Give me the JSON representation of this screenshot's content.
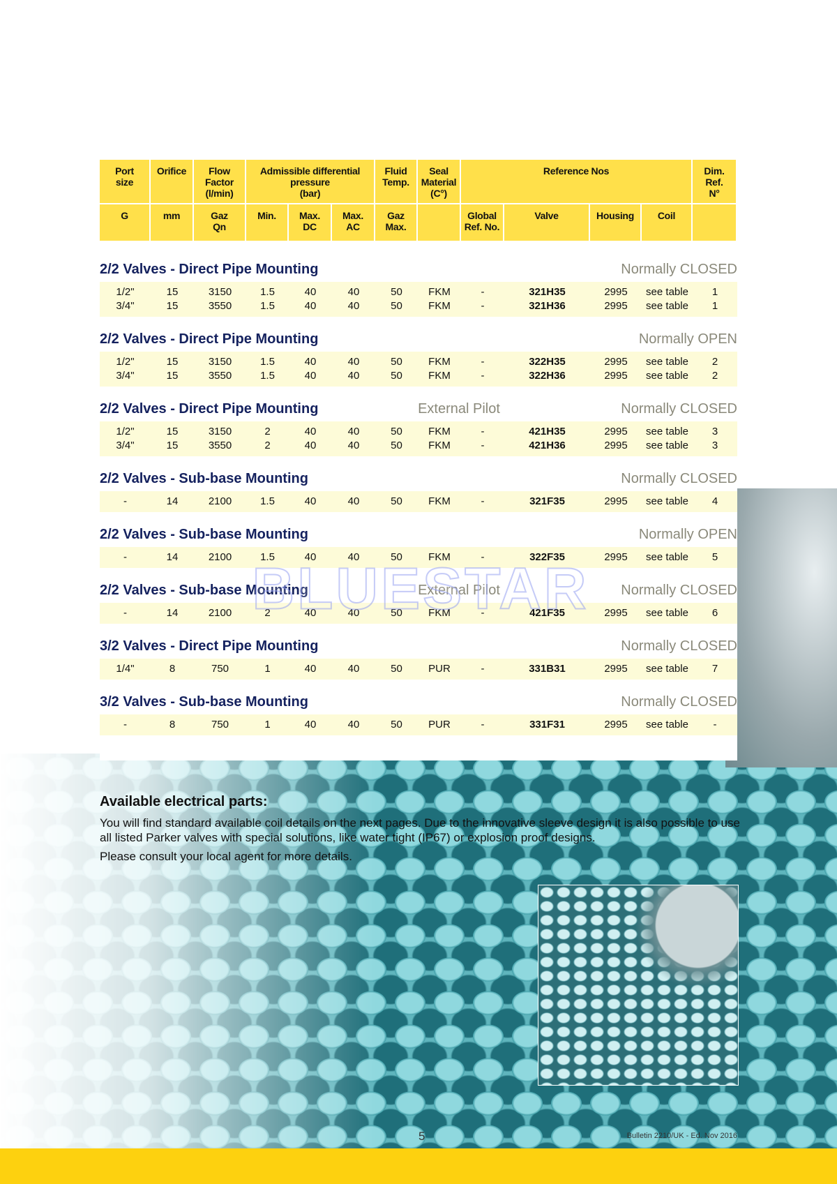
{
  "header": {
    "row1": [
      "Port\nsize",
      "Orifice",
      "Flow\nFactor\n(l/min)",
      "Admissible differential\npressure\n(bar)",
      "Fluid\nTemp.",
      "Seal\nMaterial\n(C°)",
      "Reference Nos",
      "Dim.\nRef.\nN°"
    ],
    "row2": [
      "G",
      "mm",
      "Gaz\nQn",
      "Min.",
      "Max.\nDC",
      "Max.\nAC",
      "Gaz\nMax.",
      null,
      "Global\nRef. No.",
      "Valve",
      "Housing",
      "Coil",
      null
    ]
  },
  "sections": [
    {
      "title": "2/2 Valves - Direct Pipe Mounting",
      "status": "Normally CLOSED",
      "rows": [
        [
          "1/2\"",
          "15",
          "3150",
          "1.5",
          "40",
          "40",
          "50",
          "FKM",
          "-",
          "321H35",
          "2995",
          "see table",
          "1"
        ],
        [
          "3/4\"",
          "15",
          "3550",
          "1.5",
          "40",
          "40",
          "50",
          "FKM",
          "-",
          "321H36",
          "2995",
          "see table",
          "1"
        ]
      ]
    },
    {
      "title": "2/2 Valves - Direct Pipe Mounting",
      "status": "Normally OPEN",
      "rows": [
        [
          "1/2\"",
          "15",
          "3150",
          "1.5",
          "40",
          "40",
          "50",
          "FKM",
          "-",
          "322H35",
          "2995",
          "see table",
          "2"
        ],
        [
          "3/4\"",
          "15",
          "3550",
          "1.5",
          "40",
          "40",
          "50",
          "FKM",
          "-",
          "322H36",
          "2995",
          "see table",
          "2"
        ]
      ]
    },
    {
      "title": "2/2 Valves - Direct Pipe Mounting",
      "note": "External Pilot",
      "status": "Normally CLOSED",
      "rows": [
        [
          "1/2\"",
          "15",
          "3150",
          "2",
          "40",
          "40",
          "50",
          "FKM",
          "-",
          "421H35",
          "2995",
          "see table",
          "3"
        ],
        [
          "3/4\"",
          "15",
          "3550",
          "2",
          "40",
          "40",
          "50",
          "FKM",
          "-",
          "421H36",
          "2995",
          "see table",
          "3"
        ]
      ]
    },
    {
      "title": "2/2 Valves - Sub-base Mounting",
      "status": "Normally CLOSED",
      "rows": [
        [
          "-",
          "14",
          "2100",
          "1.5",
          "40",
          "40",
          "50",
          "FKM",
          "-",
          "321F35",
          "2995",
          "see table",
          "4"
        ]
      ]
    },
    {
      "title": "2/2 Valves - Sub-base Mounting",
      "status": "Normally OPEN",
      "rows": [
        [
          "-",
          "14",
          "2100",
          "1.5",
          "40",
          "40",
          "50",
          "FKM",
          "-",
          "322F35",
          "2995",
          "see table",
          "5"
        ]
      ]
    },
    {
      "title": "2/2 Valves - Sub-base Mounting",
      "note": "External Pilot",
      "status": "Normally CLOSED",
      "rows": [
        [
          "-",
          "14",
          "2100",
          "2",
          "40",
          "40",
          "50",
          "FKM",
          "-",
          "421F35",
          "2995",
          "see table",
          "6"
        ]
      ]
    },
    {
      "title": "3/2 Valves - Direct Pipe Mounting",
      "status": "Normally CLOSED",
      "rows": [
        [
          "1/4\"",
          "8",
          "750",
          "1",
          "40",
          "40",
          "50",
          "PUR",
          "-",
          "331B31",
          "2995",
          "see table",
          "7"
        ]
      ]
    },
    {
      "title": "3/2 Valves - Sub-base Mounting",
      "status": "Normally CLOSED",
      "rows": [
        [
          "-",
          "8",
          "750",
          "1",
          "40",
          "40",
          "50",
          "PUR",
          "-",
          "331F31",
          "2995",
          "see table",
          "-"
        ]
      ]
    }
  ],
  "watermark": "BLUESTAR",
  "info": {
    "heading": "Available electrical parts:",
    "paragraph": "You will find standard available coil details on the next pages. Due to the innovative sleeve design it is also possible to use all listed Parker valves with special solutions, like water tight (IP67) or explosion proof designs.",
    "note": "Please consult your local agent for more details."
  },
  "footer": {
    "page": "5",
    "bulletin": "Bulletin 2210/UK - Ed. Nov 2016"
  }
}
